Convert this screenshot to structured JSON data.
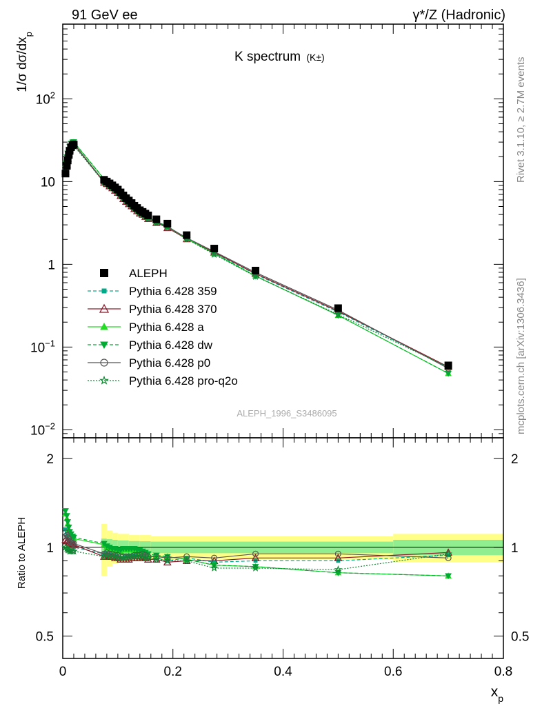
{
  "header": {
    "left": "91 GeV ee",
    "right": "γ*/Z (Hadronic)",
    "plot_title": "K spectrum",
    "plot_title_sub": "(K±)",
    "side_top": "Rivet 3.1.10, ≥ 2.7M events",
    "side_bottom": "mcplots.cern.ch [arXiv:1306.3436]",
    "watermark": "ALEPH_1996_S3486095"
  },
  "chart_data": [
    {
      "type": "scatter",
      "title": "K spectrum (K±)",
      "ylabel": "1/σ dσ/dx_p",
      "xlabel": "x_p",
      "xlim": [
        0,
        0.8
      ],
      "ylim": [
        0.008,
        800
      ],
      "yscale": "log",
      "legend_position": "middle-left",
      "y_ticks": [
        {
          "v": 0.01,
          "label": "10",
          "sup": "−2"
        },
        {
          "v": 0.1,
          "label": "10",
          "sup": "−1"
        },
        {
          "v": 1,
          "label": "1",
          "sup": ""
        },
        {
          "v": 10,
          "label": "10",
          "sup": ""
        },
        {
          "v": 100,
          "label": "10",
          "sup": "2"
        }
      ],
      "x_ticks": [
        {
          "v": 0,
          "label": "0"
        },
        {
          "v": 0.2,
          "label": "0.2"
        },
        {
          "v": 0.4,
          "label": "0.4"
        },
        {
          "v": 0.6,
          "label": "0.6"
        },
        {
          "v": 0.8,
          "label": "0.8"
        }
      ],
      "data": {
        "name": "ALEPH",
        "color": "#000000",
        "x": [
          0.005,
          0.0075,
          0.009,
          0.011,
          0.0125,
          0.015,
          0.018,
          0.02,
          0.075,
          0.08,
          0.085,
          0.09,
          0.095,
          0.1,
          0.105,
          0.11,
          0.115,
          0.12,
          0.125,
          0.13,
          0.135,
          0.14,
          0.145,
          0.15,
          0.155,
          0.17,
          0.19,
          0.225,
          0.275,
          0.35,
          0.5,
          0.7
        ],
        "y": [
          12.5,
          15.5,
          18,
          21,
          23.5,
          26,
          27.5,
          28,
          10.5,
          10,
          9.5,
          9,
          8.5,
          8,
          7.4,
          6.8,
          6.3,
          5.9,
          5.5,
          5.1,
          4.8,
          4.5,
          4.3,
          4.1,
          3.9,
          3.5,
          3.1,
          2.25,
          1.55,
          0.84,
          0.295,
          0.06
        ]
      },
      "series": [
        {
          "name": "Pythia 6.428 359",
          "color": "#00aa88",
          "marker": "square",
          "dash": "5,3",
          "ratio": [
            1.15,
            1.12,
            1.1,
            1.08,
            1.05,
            1.03,
            1.02,
            1.0,
            0.95,
            0.96,
            0.95,
            0.95,
            0.94,
            0.93,
            0.92,
            0.92,
            0.93,
            0.93,
            0.93,
            0.94,
            0.94,
            0.95,
            0.95,
            0.93,
            0.92,
            0.92,
            0.9,
            0.92,
            0.89,
            0.9,
            0.9,
            0.94
          ]
        },
        {
          "name": "Pythia 6.428 370",
          "color": "#8b1a2b",
          "marker": "triangle-open",
          "dash": "",
          "ratio": [
            1.06,
            1.05,
            1.05,
            1.04,
            1.04,
            1.03,
            1.03,
            1.02,
            0.93,
            0.94,
            0.93,
            0.93,
            0.92,
            0.92,
            0.91,
            0.91,
            0.91,
            0.91,
            0.92,
            0.92,
            0.92,
            0.92,
            0.93,
            0.92,
            0.91,
            0.91,
            0.89,
            0.9,
            0.9,
            0.92,
            0.92,
            0.96
          ]
        },
        {
          "name": "Pythia 6.428 a",
          "color": "#22dd22",
          "marker": "triangle",
          "dash": "",
          "ratio": [
            1.3,
            1.25,
            1.2,
            1.15,
            1.12,
            1.1,
            1.08,
            1.07,
            1.02,
            1.0,
            0.99,
            0.98,
            0.97,
            0.97,
            0.97,
            0.98,
            0.98,
            0.98,
            0.98,
            0.98,
            0.97,
            0.96,
            0.96,
            0.95,
            0.94,
            0.93,
            0.93,
            0.91,
            0.87,
            0.86,
            0.82,
            0.8
          ]
        },
        {
          "name": "Pythia 6.428 dw",
          "color": "#00aa33",
          "marker": "triangle-down",
          "dash": "5,3",
          "ratio": [
            1.33,
            1.28,
            1.22,
            1.17,
            1.13,
            1.11,
            1.09,
            1.08,
            1.03,
            1.01,
            1.0,
            0.99,
            0.99,
            0.98,
            0.98,
            0.99,
            0.99,
            0.99,
            0.99,
            0.99,
            0.98,
            0.98,
            0.97,
            0.96,
            0.95,
            0.94,
            0.93,
            0.91,
            0.87,
            0.86,
            0.82,
            0.8
          ]
        },
        {
          "name": "Pythia 6.428 p0",
          "color": "#555555",
          "marker": "circle-open",
          "dash": "",
          "ratio": [
            1.12,
            1.1,
            1.08,
            1.07,
            1.05,
            1.04,
            1.03,
            1.03,
            0.95,
            0.96,
            0.95,
            0.95,
            0.94,
            0.94,
            0.93,
            0.93,
            0.93,
            0.93,
            0.93,
            0.94,
            0.94,
            0.94,
            0.95,
            0.94,
            0.93,
            0.93,
            0.92,
            0.93,
            0.92,
            0.95,
            0.95,
            0.92
          ]
        },
        {
          "name": "Pythia 6.428 pro-q2o",
          "color": "#118833",
          "marker": "star",
          "dash": "2,2",
          "ratio": [
            1.0,
            0.99,
            0.98,
            0.98,
            0.97,
            0.97,
            0.97,
            0.97,
            0.93,
            0.94,
            0.93,
            0.93,
            0.93,
            0.92,
            0.92,
            0.92,
            0.92,
            0.93,
            0.93,
            0.93,
            0.93,
            0.93,
            0.93,
            0.92,
            0.92,
            0.91,
            0.9,
            0.9,
            0.85,
            0.85,
            0.84,
            0.95
          ]
        }
      ]
    },
    {
      "type": "line",
      "ylabel": "Ratio to ALEPH",
      "xlabel": "x_p",
      "xlim": [
        0,
        0.8
      ],
      "ylim": [
        0.42,
        2.35
      ],
      "yscale": "log",
      "y_ticks": [
        {
          "v": 0.5,
          "label": "0.5"
        },
        {
          "v": 1,
          "label": "1"
        },
        {
          "v": 2,
          "label": "2"
        }
      ],
      "bands": {
        "x_edges": [
          0.07,
          0.08,
          0.09,
          0.1,
          0.12,
          0.14,
          0.16,
          0.6,
          0.8
        ],
        "inner": [
          0.07,
          0.065,
          0.06,
          0.055,
          0.05,
          0.048,
          0.045,
          0.06
        ],
        "outer": [
          0.2,
          0.14,
          0.12,
          0.11,
          0.1,
          0.1,
          0.09,
          0.11
        ]
      }
    }
  ]
}
